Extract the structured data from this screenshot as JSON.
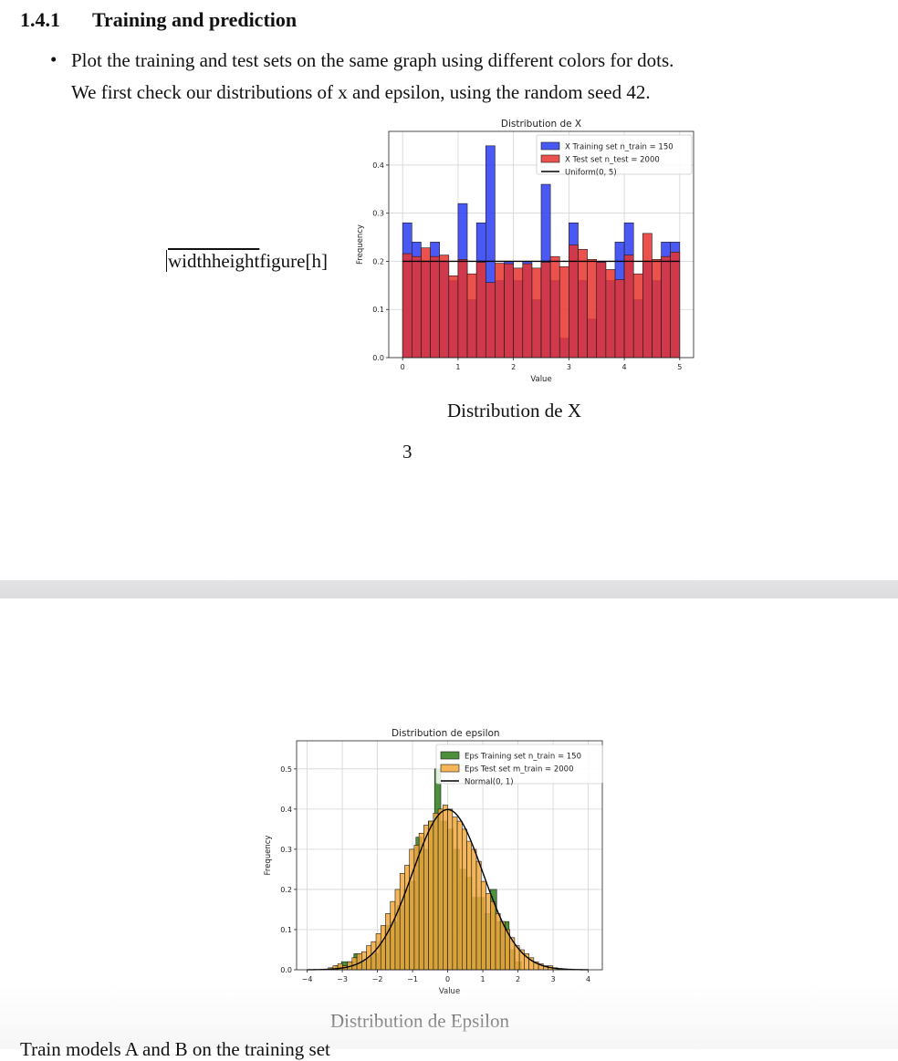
{
  "section": {
    "number": "1.4.1",
    "title": "Training and prediction"
  },
  "bullet_text": "Plot the training and test sets on the same graph using different colors for dots.",
  "intro_text": "We first check our distributions of x and epsilon, using the random seed 42.",
  "artifact_text": {
    "overlined": "widthheight",
    "rest": "figure[h]"
  },
  "figure1_caption": "Distribution de X",
  "page_number": "3",
  "figure2_caption": "Distribution de Epsilon",
  "truncated_next_line": "Train models A and B on the training set",
  "chart_data": [
    {
      "type": "bar",
      "title": "Distribution de X",
      "xlabel": "Value",
      "ylabel": "Frequency",
      "xlim": [
        -0.25,
        5.25
      ],
      "ylim": [
        0,
        0.47
      ],
      "xticks": [
        0,
        1,
        2,
        3,
        4,
        5
      ],
      "yticks": [
        0.0,
        0.1,
        0.2,
        0.3,
        0.4
      ],
      "grid": true,
      "legend_position": "top-right",
      "bins": {
        "start": 0,
        "end": 5,
        "count": 30
      },
      "series": [
        {
          "name": "X Training set n_train = 150",
          "color": "#2b3cf2",
          "values": [
            0.28,
            0.24,
            0.2,
            0.24,
            0.2,
            0.16,
            0.32,
            0.12,
            0.28,
            0.44,
            0.16,
            0.2,
            0.16,
            0.2,
            0.12,
            0.36,
            0.16,
            0.04,
            0.28,
            0.16,
            0.08,
            0.2,
            0.16,
            0.24,
            0.28,
            0.12,
            0.2,
            0.16,
            0.24,
            0.24
          ]
        },
        {
          "name": "X Test set n_test = 2000",
          "color": "#e8322e",
          "values": [
            0.216,
            0.21,
            0.228,
            0.21,
            0.213,
            0.17,
            0.204,
            0.174,
            0.198,
            0.156,
            0.196,
            0.195,
            0.186,
            0.195,
            0.186,
            0.198,
            0.21,
            0.189,
            0.234,
            0.225,
            0.204,
            0.198,
            0.183,
            0.162,
            0.213,
            0.174,
            0.258,
            0.204,
            0.21,
            0.219
          ]
        },
        {
          "name": "Uniform(0, 5)",
          "type": "line",
          "color": "#000000",
          "x": [
            0,
            5
          ],
          "y": [
            0.2,
            0.2
          ]
        }
      ]
    },
    {
      "type": "bar",
      "title": "Distribution de epsilon",
      "xlabel": "Value",
      "ylabel": "Frequency",
      "xlim": [
        -4.3,
        4.4
      ],
      "ylim": [
        0,
        0.57
      ],
      "xticks": [
        -4,
        -3,
        -2,
        -1,
        0,
        1,
        2,
        3,
        4
      ],
      "yticks": [
        0.0,
        0.1,
        0.2,
        0.3,
        0.4,
        0.5
      ],
      "grid": true,
      "legend_position": "top-right",
      "series": [
        {
          "name": "Eps Training set n_train = 150",
          "color": "#2e7d1a",
          "bins": {
            "start": -3.2,
            "end": 2.1,
            "count": 30
          },
          "values": [
            0.01,
            0.02,
            0.02,
            0.04,
            0.02,
            0.03,
            0.04,
            0.07,
            0.11,
            0.12,
            0.16,
            0.2,
            0.22,
            0.33,
            0.3,
            0.37,
            0.5,
            0.37,
            0.35,
            0.3,
            0.25,
            0.23,
            0.18,
            0.18,
            0.14,
            0.2,
            0.12,
            0.12,
            0.05,
            0.02
          ]
        },
        {
          "name": "Eps Test set m_train = 2000",
          "color": "#f2a93b",
          "bins": {
            "start": -3.4,
            "end": 3.4,
            "count": 50
          },
          "values": [
            0.005,
            0.01,
            0.015,
            0.01,
            0.02,
            0.03,
            0.04,
            0.045,
            0.06,
            0.07,
            0.09,
            0.11,
            0.14,
            0.17,
            0.2,
            0.24,
            0.26,
            0.3,
            0.31,
            0.34,
            0.36,
            0.37,
            0.39,
            0.4,
            0.41,
            0.4,
            0.38,
            0.37,
            0.35,
            0.32,
            0.3,
            0.27,
            0.22,
            0.19,
            0.17,
            0.14,
            0.12,
            0.1,
            0.08,
            0.06,
            0.05,
            0.04,
            0.03,
            0.02,
            0.015,
            0.01,
            0.01,
            0.005,
            0.003,
            0.002
          ]
        },
        {
          "name": "Normal(0, 1)",
          "type": "line",
          "color": "#000000",
          "function": "normal_pdf",
          "mean": 0,
          "std": 1,
          "x_range": [
            -4,
            4
          ]
        }
      ]
    }
  ]
}
